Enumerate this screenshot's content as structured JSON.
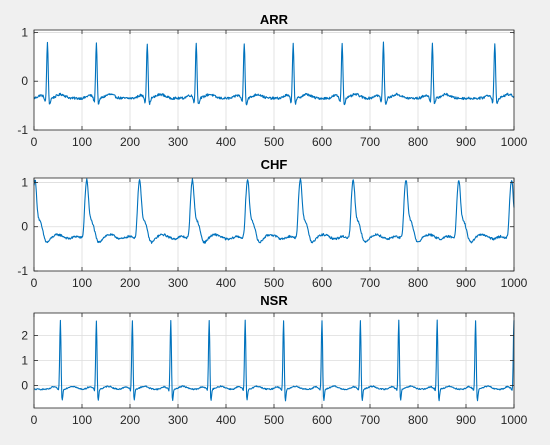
{
  "figure": {
    "background": "#f0f0f0",
    "line_color": "#0072bd",
    "grid_color": "#dcdcdc"
  },
  "chart_data": [
    {
      "type": "line",
      "title": "ARR",
      "xlim": [
        0,
        1000
      ],
      "ylim": [
        -1,
        1.05
      ],
      "xticks": [
        0,
        100,
        200,
        300,
        400,
        500,
        600,
        700,
        800,
        900,
        1000
      ],
      "yticks": [
        -1,
        0,
        1
      ],
      "grid": true,
      "series": [
        {
          "baseline": -0.35,
          "peaks": [
            28,
            130,
            236,
            338,
            438,
            540,
            642,
            728,
            830,
            960
          ],
          "peak_value": 0.8,
          "trough_value": -0.55
        }
      ]
    },
    {
      "type": "line",
      "title": "CHF",
      "xlim": [
        0,
        1000
      ],
      "ylim": [
        -1,
        1.1
      ],
      "xticks": [
        0,
        100,
        200,
        300,
        400,
        500,
        600,
        700,
        800,
        900,
        1000
      ],
      "yticks": [
        -1,
        0,
        1
      ],
      "grid": true,
      "series": [
        {
          "baseline": -0.3,
          "peaks": [
            2,
            110,
            220,
            330,
            445,
            555,
            665,
            775,
            885,
            995
          ],
          "peak_value": 1.05,
          "trough_value": -0.5
        }
      ]
    },
    {
      "type": "line",
      "title": "NSR",
      "xlim": [
        0,
        1000
      ],
      "ylim": [
        -0.9,
        2.9
      ],
      "xticks": [
        0,
        100,
        200,
        300,
        400,
        500,
        600,
        700,
        800,
        900,
        1000
      ],
      "yticks": [
        0,
        1,
        2
      ],
      "grid": true,
      "series": [
        {
          "baseline": -0.15,
          "peaks": [
            55,
            130,
            205,
            285,
            365,
            440,
            520,
            600,
            680,
            760,
            840,
            920,
            1000
          ],
          "peak_value": 2.7,
          "trough_value": -0.75
        }
      ]
    }
  ]
}
